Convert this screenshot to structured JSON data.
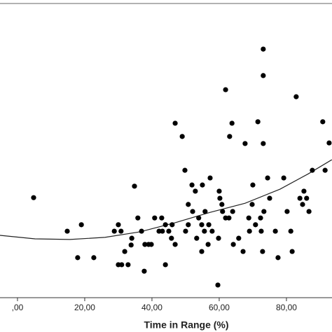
{
  "chart_data": {
    "type": "scatter",
    "x_label": "Time in Range (%)",
    "xlim": [
      -5.2,
      93.55
    ],
    "ylim": [
      0,
      100
    ],
    "xticks": [
      {
        "value": 0,
        "label": ",00"
      },
      {
        "value": 20,
        "label": "20,00"
      },
      {
        "value": 40,
        "label": "40,00"
      },
      {
        "value": 60,
        "label": "60,00"
      },
      {
        "value": 80,
        "label": "80,00"
      }
    ],
    "color": "#000000",
    "x": [
      4.8,
      14.8,
      19.0,
      17.9,
      22.7,
      28.8,
      30.0,
      30.8,
      31.9,
      30.0,
      31.0,
      32.9,
      34.0,
      33.8,
      34.8,
      35.8,
      36.9,
      37.9,
      37.7,
      39.0,
      39.8,
      40.8,
      42.1,
      43.1,
      42.9,
      44.0,
      44.0,
      45.0,
      46.0,
      45.8,
      46.9,
      46.9,
      49.0,
      49.8,
      50.0,
      50.8,
      50.8,
      51.9,
      52.1,
      52.9,
      53.3,
      53.9,
      55.0,
      54.8,
      54.8,
      55.8,
      55.6,
      56.7,
      56.9,
      57.3,
      57.9,
      59.6,
      60.0,
      60.2,
      59.8,
      60.8,
      61.0,
      61.9,
      61.9,
      63.1,
      62.9,
      63.8,
      64.0,
      64.2,
      65.8,
      67.1,
      67.7,
      68.8,
      69.0,
      70.0,
      69.8,
      70.8,
      71.5,
      72.3,
      73.1,
      73.1,
      73.1,
      72.5,
      73.3,
      72.9,
      74.4,
      75.0,
      76.7,
      77.5,
      79.2,
      80.2,
      81.3,
      81.7,
      82.9,
      84.0,
      85.2,
      84.8,
      86.0,
      86.7,
      87.7,
      90.8,
      91.5,
      92.7
    ],
    "values": [
      34.0,
      22.6,
      24.8,
      13.6,
      13.6,
      22.6,
      24.8,
      22.6,
      15.7,
      11.2,
      11.2,
      11.2,
      20.2,
      17.9,
      37.9,
      27.1,
      22.6,
      18.1,
      9.0,
      18.1,
      18.1,
      27.1,
      22.6,
      22.6,
      27.1,
      24.8,
      11.2,
      22.6,
      24.8,
      20.2,
      59.3,
      18.1,
      54.8,
      43.3,
      22.6,
      24.8,
      31.7,
      38.3,
      29.3,
      36.2,
      20.2,
      27.1,
      38.3,
      24.8,
      15.7,
      29.3,
      22.6,
      18.1,
      24.8,
      40.7,
      22.6,
      4.3,
      36.2,
      33.8,
      20.2,
      31.7,
      29.3,
      70.7,
      27.1,
      54.8,
      27.1,
      59.3,
      29.3,
      18.1,
      20.2,
      15.7,
      52.4,
      27.1,
      22.6,
      38.3,
      31.7,
      24.8,
      59.8,
      27.1,
      84.5,
      75.5,
      52.4,
      22.6,
      29.3,
      15.7,
      40.7,
      33.8,
      22.6,
      13.6,
      40.7,
      29.3,
      22.6,
      15.7,
      68.3,
      33.8,
      36.2,
      31.7,
      33.8,
      29.3,
      43.3,
      59.8,
      43.3,
      52.6
    ],
    "fit_line": {
      "x": [
        -5.2,
        5.2,
        15.6,
        26.0,
        36.5,
        46.9,
        57.3,
        67.7,
        78.1,
        86.5,
        93.5
      ],
      "values": [
        21.2,
        20.0,
        19.8,
        20.5,
        22.4,
        25.5,
        29.0,
        32.1,
        36.9,
        42.1,
        46.9
      ]
    }
  }
}
